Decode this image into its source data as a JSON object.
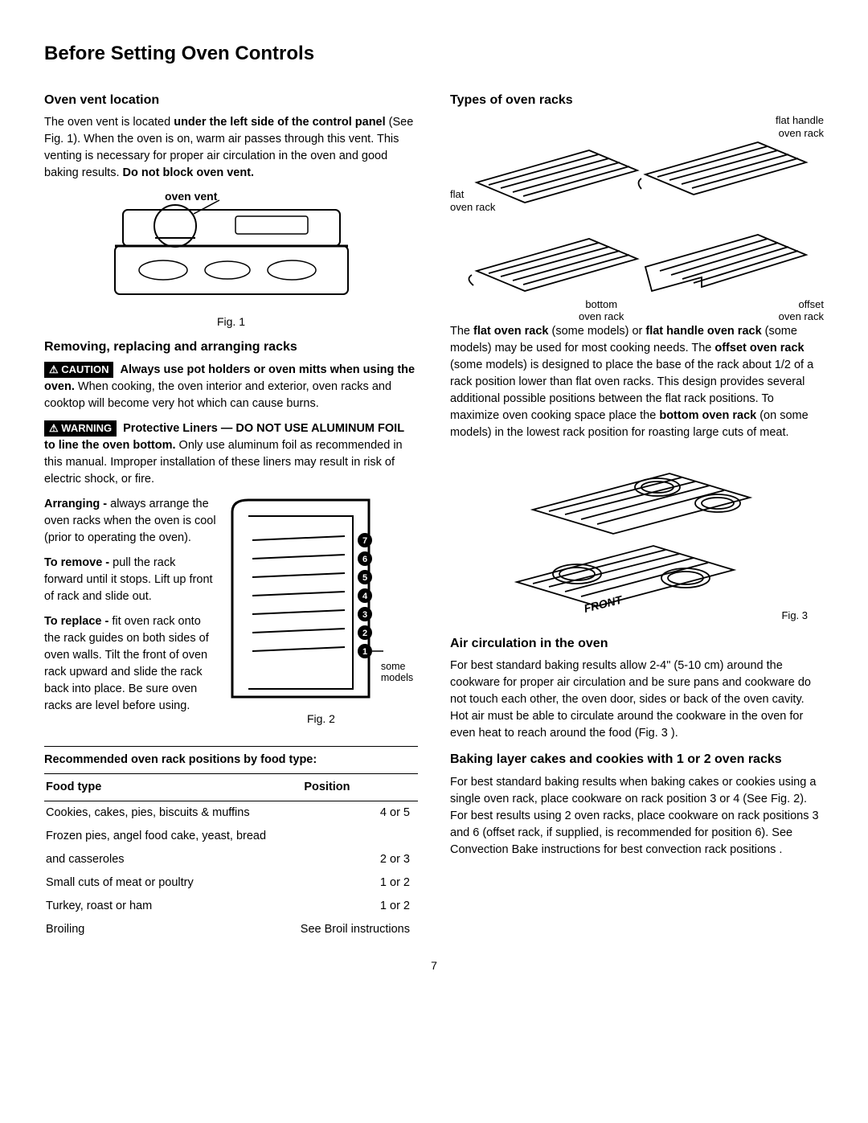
{
  "title": "Before Setting Oven Controls",
  "page_number": "7",
  "left": {
    "vent_heading": "Oven vent location",
    "vent_text_1a": "The oven vent is located ",
    "vent_text_1b": "under the left side of the control panel",
    "vent_text_1c": " (See Fig. 1). When the oven is on, warm air passes through this vent. This venting is necessary for proper air circulation in the oven and good baking results. ",
    "vent_text_1d": "Do not block oven vent.",
    "oven_vent_label": "oven vent",
    "fig1_caption": "Fig. 1",
    "racks_heading": "Removing, replacing and arranging racks",
    "caution_label": "⚠ CAUTION",
    "caution_bold": "Always use pot holders or oven mitts when using the oven.",
    "caution_rest": " When cooking, the oven interior and exterior, oven racks and cooktop will become very hot which can cause burns.",
    "warning_label": "⚠ WARNING",
    "warning_bold": "Protective Liners — DO NOT USE ALUMINUM FOIL to line the oven bottom.",
    "warning_rest": " Only use aluminum foil as recommended in this manual. Improper installation of these liners may result in risk of electric shock, or fire.",
    "arranging_bold": "Arranging -",
    "arranging_rest": " always arrange the oven racks when the oven is cool (prior to operating the oven).",
    "remove_bold": "To remove -",
    "remove_rest": " pull the rack forward until it stops. Lift up front of rack and slide out.",
    "replace_bold": "To replace -",
    "replace_rest": " fit oven rack onto the rack guides on both sides of oven walls. Tilt the front of oven rack upward and slide the rack back into place. Be sure oven racks are level before using.",
    "fig2_caption": "Fig. 2",
    "some_models": "some\nmodels",
    "rack_positions": [
      "7",
      "6",
      "5",
      "4",
      "3",
      "2",
      "1"
    ],
    "table_title": "Recommended oven rack positions by food type:",
    "col_food": "Food type",
    "col_position": "Position",
    "rows": [
      {
        "food": "Cookies, cakes, pies, biscuits & muffins",
        "pos": "4 or 5"
      },
      {
        "food": "Frozen pies, angel food cake, yeast, bread",
        "pos": ""
      },
      {
        "food": "and casseroles",
        "pos": "2 or 3",
        "indent": true
      },
      {
        "food": "Small cuts of meat or poultry",
        "pos": "1 or 2"
      },
      {
        "food": "Turkey, roast or ham",
        "pos": "1 or 2"
      },
      {
        "food": "Broiling",
        "pos": "See Broil instructions"
      }
    ]
  },
  "right": {
    "types_heading": "Types of oven racks",
    "label_flat": "flat\noven rack",
    "label_flat_handle": "flat handle\noven rack",
    "label_bottom": "bottom\noven rack",
    "label_offset": "offset\noven rack",
    "types_text_a": "The ",
    "types_text_b": "flat oven rack",
    "types_text_c": " (some models) or ",
    "types_text_d": "flat handle oven rack",
    "types_text_e": " (some models) may be used for most cooking needs. The ",
    "types_text_f": "offset oven rack",
    "types_text_g": " (some models) is designed to place the base of the rack about 1/2 of a rack position lower than flat oven racks. This design provides several additional possible positions between the flat rack positions. To maximize oven cooking space place the ",
    "types_text_h": "bottom oven rack",
    "types_text_i": " (on some models) in the lowest rack position for roasting large cuts of meat.",
    "fig3_caption": "Fig. 3",
    "front_label": "FRONT",
    "air_heading": "Air circulation in the oven",
    "air_text": "For best standard baking results allow 2-4\" (5-10 cm) around the cookware for proper air circulation and be sure pans and cookware do not touch each other, the oven door, sides or back of the oven cavity. Hot air must be able to circulate around the cookware in the oven for even heat to reach around the food (Fig. 3 ).",
    "baking_heading": "Baking layer cakes and cookies with 1 or 2 oven racks",
    "baking_text": "For best standard baking results when baking cakes or cookies using a single oven rack, place cookware on rack position 3 or 4 (See Fig. 2). For best results using 2 oven racks, place cookware on rack positions 3 and 6 (offset rack, if supplied, is recommended for position 6). See Convection Bake instructions for best convection rack positions ."
  }
}
